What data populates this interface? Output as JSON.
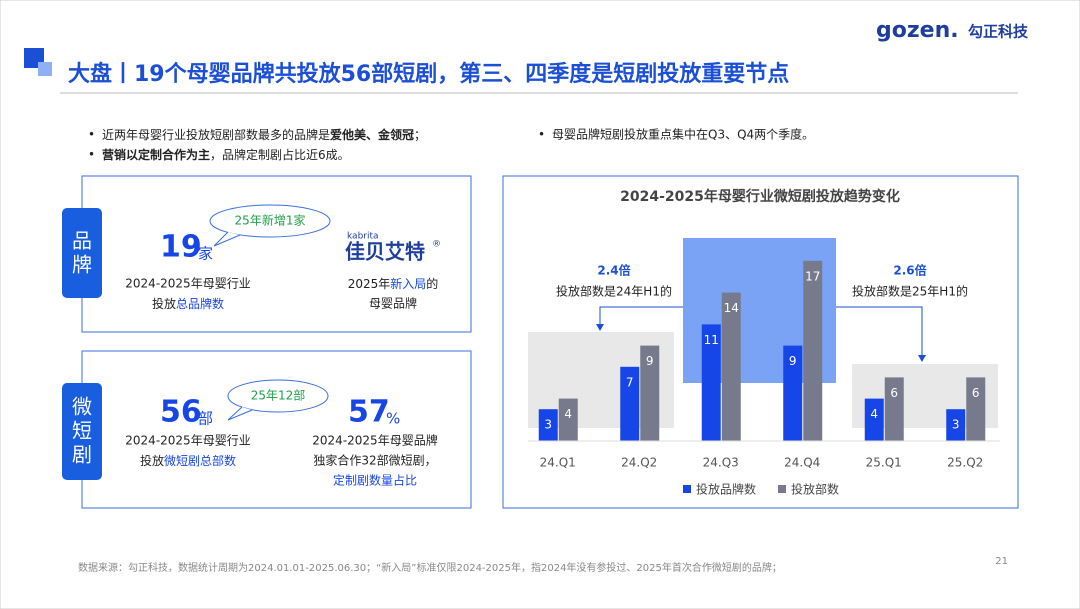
{
  "header": {
    "title": "大盘丨19个母婴品牌共投放56部短剧，第三、四季度是短剧投放重要节点",
    "logo": "gozen.",
    "logo_cn": "勾正科技"
  },
  "bullets_left": [
    [
      "近两年母婴行业投放短剧部数最多的品牌是",
      "爱他美、金领冠",
      "；"
    ],
    [
      "营销以定制合作为主",
      "，品牌定制剧占比近6成。"
    ]
  ],
  "bullets_right": [
    "母婴品牌短剧投放重点集中在Q3、Q4两个季度。"
  ],
  "cards": [
    {
      "label": "品牌",
      "number": 19,
      "unit": "家",
      "bubble": "25年新增1家",
      "desc": [
        "2024-2025年母婴行业",
        [
          "投放",
          "总品牌数"
        ]
      ],
      "logo_small": "kabrita",
      "logo": "佳贝艾特",
      "logo_mark": "®",
      "desc2": [
        [
          "2025年",
          "新入局",
          "的"
        ],
        "母婴品牌"
      ]
    },
    {
      "label": "微短剧",
      "number": 56,
      "unit": "部",
      "bubble": "25年12部",
      "desc": [
        "2024-2025年母婴行业",
        [
          "投放",
          "微短剧总部数"
        ]
      ],
      "number2": 57,
      "unit2": "%",
      "desc2": [
        "2024-2025年母婴品牌",
        "独家合作32部微短剧，",
        "定制剧数量占比"
      ]
    }
  ],
  "chart_data": {
    "type": "bar",
    "title": "2024-2025年母婴行业微短剧投放趋势变化",
    "categories": [
      "24.Q1",
      "24.Q2",
      "24.Q3",
      "24.Q4",
      "25.Q1",
      "25.Q2"
    ],
    "series": [
      {
        "name": "投放品牌数",
        "color": "#1746e8",
        "values": [
          3,
          7,
          11,
          9,
          4,
          3
        ]
      },
      {
        "name": "投放部数",
        "color": "#767a8c",
        "values": [
          4,
          9,
          14,
          17,
          6,
          6
        ]
      }
    ],
    "annotations": [
      [
        "2.4倍",
        "投放部数是24年H1的"
      ],
      [
        "2.6倍",
        "投放部数是25年H1的"
      ]
    ]
  },
  "footer": {
    "source": "数据来源：勾正科技，数据统计周期为2024.01.01-2025.06.30；“新入局”标准仅限2024-2025年，指2024年没有参投过、2025年首次合作微短剧的品牌；",
    "page": "21"
  }
}
